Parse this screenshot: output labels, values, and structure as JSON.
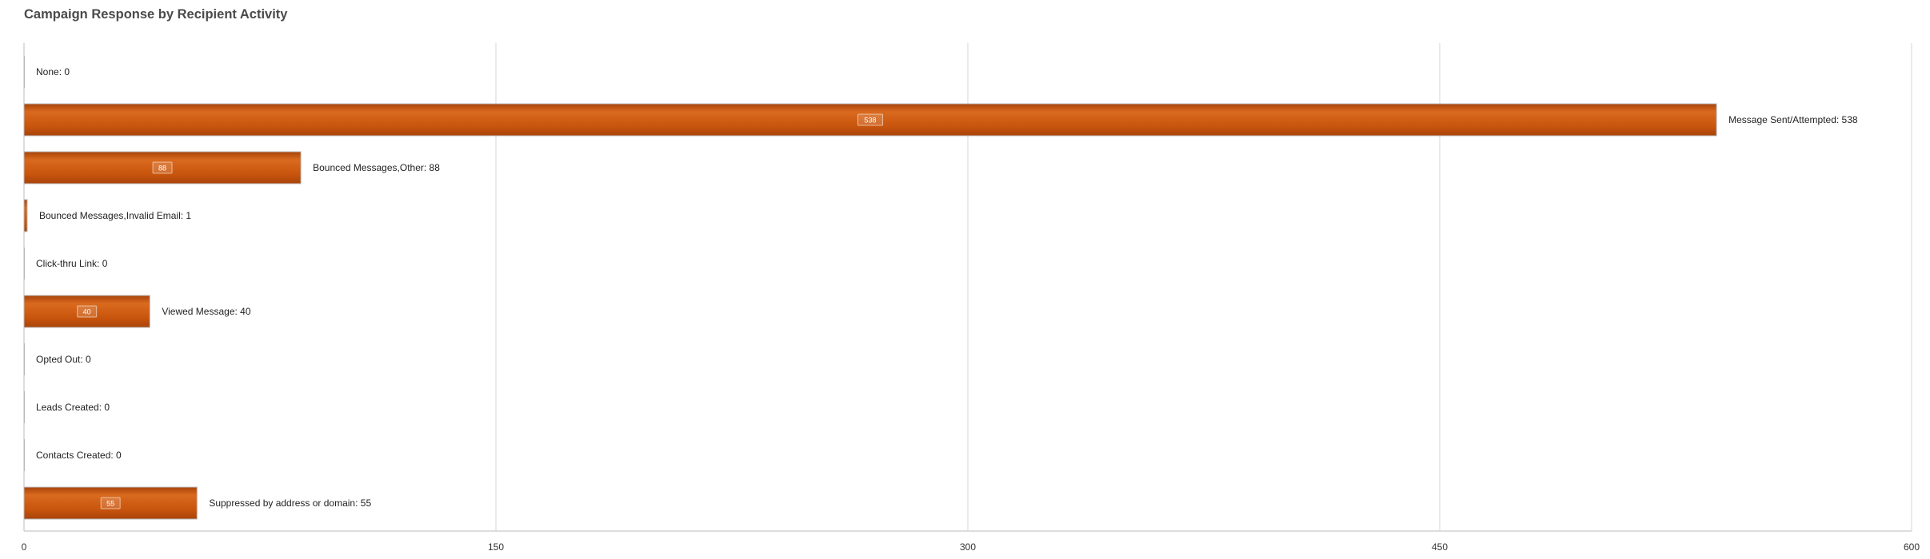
{
  "colors": {
    "bar": "#c9550d",
    "bar_light": "#d96a1e",
    "bar_dark": "#a8430a",
    "bar_border": "#b8b8b8",
    "grid": "#d6d6d6",
    "axis": "#bbbbbb"
  },
  "chart_data": {
    "type": "bar",
    "orientation": "horizontal",
    "title": "Campaign Response by Recipient Activity",
    "categories": [
      "None",
      "Message Sent/Attempted",
      "Bounced Messages,Other",
      "Bounced Messages,Invalid Email",
      "Click-thru Link",
      "Viewed Message",
      "Opted Out",
      "Leads Created",
      "Contacts Created",
      "Suppressed by address or domain"
    ],
    "values": [
      0,
      538,
      88,
      1,
      0,
      40,
      0,
      0,
      0,
      55
    ],
    "bar_labels": [
      "None: 0",
      "Message Sent/Attempted: 538",
      "Bounced Messages,Other: 88",
      "Bounced Messages,Invalid Email: 1",
      "Click-thru Link: 0",
      "Viewed Message: 40",
      "Opted Out: 0",
      "Leads Created: 0",
      "Contacts Created: 0",
      "Suppressed by address or domain: 55"
    ],
    "xlim": [
      0,
      600
    ],
    "x_ticks": [
      0,
      150,
      300,
      450,
      600
    ],
    "x_tick_labels": [
      "0",
      "150",
      "300",
      "450",
      "600"
    ],
    "grid": true,
    "xlabel": "",
    "ylabel": ""
  }
}
